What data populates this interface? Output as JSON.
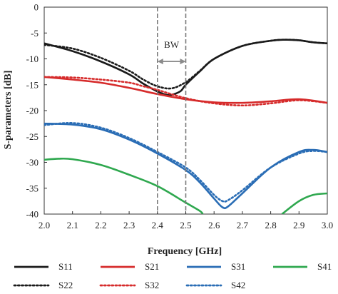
{
  "chart_data": {
    "type": "line",
    "title": "",
    "xlabel": "Frequency [GHz]",
    "ylabel": "S-parameters [dB]",
    "xlim": [
      2.0,
      3.0
    ],
    "ylim": [
      -40,
      0
    ],
    "xticks": [
      "2.0",
      "2.1",
      "2.2",
      "2.3",
      "2.4",
      "2.5",
      "2.6",
      "2.7",
      "2.8",
      "2.9",
      "3.0"
    ],
    "yticks": [
      "0",
      "-5",
      "-10",
      "-15",
      "-20",
      "-25",
      "-30",
      "-35",
      "-40"
    ],
    "grid": false,
    "legend_position": "bottom",
    "annotation": {
      "text": "BW",
      "x_start": 2.4,
      "x_end": 2.5,
      "y": -10.5
    },
    "series": [
      {
        "name": "S11",
        "color": "#1a1a1a",
        "dash": "solid",
        "x": [
          2.0,
          2.1,
          2.2,
          2.3,
          2.35,
          2.4,
          2.44,
          2.48,
          2.5,
          2.55,
          2.6,
          2.7,
          2.8,
          2.85,
          2.9,
          2.95,
          3.0
        ],
        "y": [
          -7,
          -8.5,
          -10.5,
          -13,
          -14.8,
          -16.3,
          -17,
          -16.3,
          -15,
          -12.4,
          -10,
          -7.5,
          -6.5,
          -6.3,
          -6.4,
          -6.8,
          -7
        ]
      },
      {
        "name": "S22",
        "color": "#1a1a1a",
        "dash": "dotted",
        "x": [
          2.0,
          2.1,
          2.2,
          2.3,
          2.35,
          2.4,
          2.45,
          2.5,
          2.55,
          2.6,
          2.7,
          2.8,
          2.85,
          2.9,
          2.95,
          3.0
        ],
        "y": [
          -7.3,
          -8,
          -9.8,
          -12.3,
          -14,
          -15.3,
          -15.7,
          -14.5,
          -12.3,
          -10,
          -7.5,
          -6.5,
          -6.3,
          -6.4,
          -6.8,
          -7
        ]
      },
      {
        "name": "S21",
        "color": "#d62b2b",
        "dash": "solid",
        "x": [
          2.0,
          2.1,
          2.2,
          2.3,
          2.35,
          2.4,
          2.5,
          2.6,
          2.7,
          2.8,
          2.9,
          3.0
        ],
        "y": [
          -13.5,
          -14,
          -14.6,
          -15.6,
          -16.2,
          -16.8,
          -17.8,
          -18.4,
          -18.5,
          -18.2,
          -17.8,
          -18.5
        ]
      },
      {
        "name": "S32",
        "color": "#d62b2b",
        "dash": "dotted",
        "x": [
          2.0,
          2.1,
          2.2,
          2.3,
          2.35,
          2.4,
          2.5,
          2.6,
          2.7,
          2.8,
          2.9,
          3.0
        ],
        "y": [
          -13.5,
          -13.6,
          -14,
          -14.6,
          -15.3,
          -16,
          -17.6,
          -18.6,
          -19,
          -18.6,
          -18,
          -18.5
        ]
      },
      {
        "name": "S31",
        "color": "#2a6db5",
        "dash": "solid",
        "x": [
          2.0,
          2.1,
          2.2,
          2.3,
          2.4,
          2.5,
          2.55,
          2.6,
          2.63,
          2.65,
          2.7,
          2.8,
          2.9,
          2.95,
          3.0
        ],
        "y": [
          -22.5,
          -22.7,
          -23.6,
          -25.6,
          -28.3,
          -31.5,
          -33.9,
          -37,
          -38.7,
          -38.5,
          -36,
          -31,
          -28,
          -27.6,
          -28
        ]
      },
      {
        "name": "S42",
        "color": "#2a6db5",
        "dash": "dotted",
        "x": [
          2.0,
          2.1,
          2.2,
          2.3,
          2.4,
          2.5,
          2.55,
          2.6,
          2.63,
          2.65,
          2.7,
          2.8,
          2.9,
          2.95,
          3.0
        ],
        "y": [
          -22.8,
          -22.4,
          -23.3,
          -25.3,
          -28,
          -31,
          -33.4,
          -36.3,
          -37.5,
          -37.3,
          -35.4,
          -31,
          -28.3,
          -27.8,
          -28
        ]
      },
      {
        "name": "S41",
        "color": "#2fa84f",
        "dash": "solid",
        "x": [
          2.0,
          2.05,
          2.1,
          2.2,
          2.3,
          2.4,
          2.5,
          2.55,
          2.56
        ],
        "x2": [
          2.84,
          2.9,
          2.95,
          3.0
        ],
        "y": [
          -29.5,
          -29.3,
          -29.4,
          -30.5,
          -32.4,
          -34.6,
          -37.8,
          -39.4,
          -40
        ],
        "y2": [
          -40,
          -37.5,
          -36.3,
          -36
        ]
      }
    ]
  },
  "legend": {
    "row1": [
      "S11",
      "S21",
      "S31",
      "S41"
    ],
    "row2": [
      "S22",
      "S32",
      "S42"
    ]
  }
}
